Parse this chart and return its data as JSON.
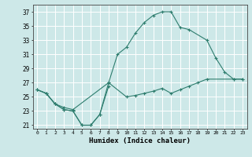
{
  "xlabel": "Humidex (Indice chaleur)",
  "xlim": [
    -0.5,
    23.5
  ],
  "ylim": [
    20.5,
    38
  ],
  "yticks": [
    21,
    23,
    25,
    27,
    29,
    31,
    33,
    35,
    37
  ],
  "xticks": [
    0,
    1,
    2,
    3,
    4,
    5,
    6,
    7,
    8,
    9,
    10,
    11,
    12,
    13,
    14,
    15,
    16,
    17,
    18,
    19,
    20,
    21,
    22,
    23
  ],
  "bg_color": "#cde8e8",
  "grid_color": "#ffffff",
  "line_color": "#2e7d6e",
  "curve1": {
    "x": [
      0,
      1,
      2,
      3,
      4,
      5,
      6,
      7,
      8
    ],
    "y": [
      26.0,
      25.5,
      24.0,
      23.2,
      23.0,
      21.0,
      21.0,
      22.5,
      26.5
    ]
  },
  "curve2": {
    "x": [
      0,
      1,
      2,
      3,
      4,
      8,
      10,
      11,
      12,
      13,
      14,
      15,
      16,
      17,
      18,
      19,
      22,
      23
    ],
    "y": [
      26.0,
      25.5,
      24.0,
      23.5,
      23.2,
      27.0,
      25.0,
      25.2,
      25.5,
      25.8,
      26.2,
      25.5,
      26.0,
      26.5,
      27.0,
      27.5,
      27.5,
      27.5
    ]
  },
  "curve3": {
    "x": [
      0,
      1,
      2,
      3,
      4,
      5,
      6,
      7,
      8,
      9,
      10,
      11,
      12,
      13,
      14,
      15,
      16,
      17,
      19,
      20,
      21,
      22,
      23
    ],
    "y": [
      26.0,
      25.5,
      24.0,
      23.2,
      23.0,
      21.0,
      21.0,
      22.5,
      27.0,
      31.0,
      32.0,
      34.0,
      35.5,
      36.5,
      37.0,
      37.0,
      34.8,
      34.5,
      33.0,
      30.5,
      28.5,
      27.5,
      27.5
    ]
  }
}
